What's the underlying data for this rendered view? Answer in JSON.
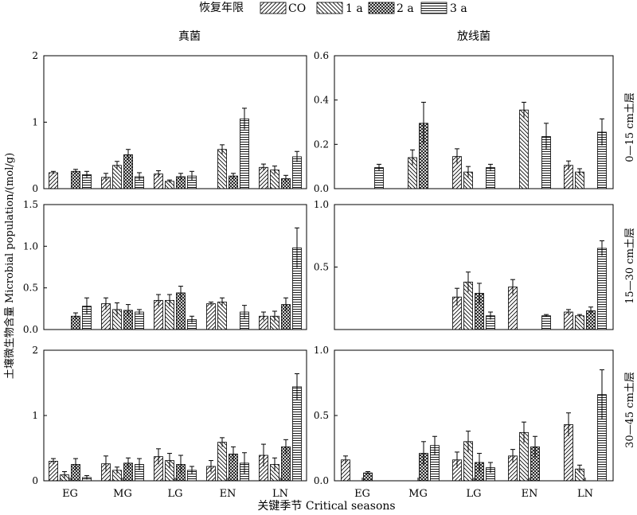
{
  "legend": {
    "title": "恢复年限",
    "items": [
      {
        "label": "CO",
        "pattern": "pat-fwd"
      },
      {
        "label": "1 a",
        "pattern": "pat-bwd"
      },
      {
        "label": "2 a",
        "pattern": "pat-cross"
      },
      {
        "label": "3 a",
        "pattern": "pat-horiz"
      }
    ]
  },
  "column_titles": [
    "真菌",
    "放线菌"
  ],
  "row_labels": [
    "0—15 cm土层",
    "15—30 cm土层",
    "30—45 cm土层"
  ],
  "ylabel": "土壤微生物含量 Microbial population/(mol/g)",
  "xlabel": "关键季节 Critical seasons",
  "chart_data": {
    "type": "bar",
    "categories": [
      "EG",
      "MG",
      "LG",
      "EN",
      "LN"
    ],
    "series_names": [
      "CO",
      "1 a",
      "2 a",
      "3 a"
    ],
    "panels": [
      {
        "column": "真菌",
        "depth": "0—15 cm土层",
        "ylim": [
          0,
          2
        ],
        "yticks": [
          0,
          1,
          2
        ],
        "values": [
          [
            0.24,
            null,
            0.26,
            0.21
          ],
          [
            0.17,
            0.35,
            0.51,
            0.18
          ],
          [
            0.22,
            0.11,
            0.18,
            0.19
          ],
          [
            null,
            0.59,
            0.19,
            1.05
          ],
          [
            0.32,
            0.28,
            0.15,
            0.48
          ]
        ],
        "errors": [
          [
            0.02,
            null,
            0.03,
            0.05
          ],
          [
            0.06,
            0.06,
            0.08,
            0.06
          ],
          [
            0.05,
            0.02,
            0.05,
            0.07
          ],
          [
            null,
            0.07,
            0.04,
            0.16
          ],
          [
            0.05,
            0.06,
            0.05,
            0.08
          ]
        ]
      },
      {
        "column": "放线菌",
        "depth": "0—15 cm土层",
        "ylim": [
          0,
          0.6
        ],
        "yticks": [
          0,
          0.2,
          0.4,
          0.6
        ],
        "values": [
          [
            null,
            null,
            null,
            0.095
          ],
          [
            null,
            0.14,
            0.295,
            null
          ],
          [
            0.145,
            0.075,
            null,
            0.095
          ],
          [
            null,
            0.355,
            null,
            0.235
          ],
          [
            0.105,
            0.075,
            null,
            0.255
          ]
        ],
        "errors": [
          [
            null,
            null,
            null,
            0.015
          ],
          [
            null,
            0.035,
            0.095,
            null
          ],
          [
            0.035,
            0.025,
            null,
            0.015
          ],
          [
            null,
            0.035,
            null,
            0.06
          ],
          [
            0.02,
            0.015,
            null,
            0.06
          ]
        ]
      },
      {
        "column": "真菌",
        "depth": "15—30 cm土层",
        "ylim": [
          0,
          1.5
        ],
        "yticks": [
          0,
          0.5,
          1.0,
          1.5
        ],
        "values": [
          [
            null,
            null,
            0.16,
            0.28
          ],
          [
            0.31,
            0.24,
            0.23,
            0.21
          ],
          [
            0.35,
            0.35,
            0.44,
            0.12
          ],
          [
            0.31,
            0.33,
            null,
            0.21
          ],
          [
            0.16,
            0.16,
            0.3,
            0.98
          ]
        ],
        "errors": [
          [
            null,
            null,
            0.04,
            0.1
          ],
          [
            0.07,
            0.08,
            0.07,
            0.03
          ],
          [
            0.07,
            0.07,
            0.08,
            0.04
          ],
          [
            0.02,
            0.05,
            null,
            0.08
          ],
          [
            0.05,
            0.06,
            0.08,
            0.24
          ]
        ]
      },
      {
        "column": "放线菌",
        "depth": "15—30 cm土层",
        "ylim": [
          0,
          1.0
        ],
        "yticks": [
          0.5,
          1.0
        ],
        "values": [
          [
            null,
            null,
            null,
            null
          ],
          [
            null,
            null,
            null,
            null
          ],
          [
            0.26,
            0.38,
            0.29,
            0.11
          ],
          [
            0.34,
            null,
            null,
            0.11
          ],
          [
            0.14,
            0.11,
            0.15,
            0.65
          ]
        ],
        "errors": [
          [
            null,
            null,
            null,
            null
          ],
          [
            null,
            null,
            null,
            null
          ],
          [
            0.07,
            0.08,
            0.08,
            0.03
          ],
          [
            0.06,
            null,
            null,
            0.01
          ],
          [
            0.02,
            0.01,
            0.03,
            0.06
          ]
        ]
      },
      {
        "column": "真菌",
        "depth": "30—45 cm土层",
        "ylim": [
          0,
          2
        ],
        "yticks": [
          0,
          1,
          2
        ],
        "values": [
          [
            0.3,
            0.09,
            0.25,
            0.05
          ],
          [
            0.26,
            0.16,
            0.27,
            0.25
          ],
          [
            0.37,
            0.31,
            0.25,
            0.16
          ],
          [
            0.22,
            0.59,
            0.41,
            0.27
          ],
          [
            0.39,
            0.25,
            0.52,
            1.44
          ]
        ],
        "errors": [
          [
            0.04,
            0.05,
            0.09,
            0.03
          ],
          [
            0.12,
            0.05,
            0.08,
            0.09
          ],
          [
            0.12,
            0.11,
            0.14,
            0.06
          ],
          [
            0.09,
            0.07,
            0.11,
            0.16
          ],
          [
            0.17,
            0.1,
            0.11,
            0.2
          ]
        ]
      },
      {
        "column": "放线菌",
        "depth": "30—45 cm土层",
        "ylim": [
          0,
          1.0
        ],
        "yticks": [
          0,
          0.5,
          1.0
        ],
        "values": [
          [
            0.16,
            null,
            0.06,
            null
          ],
          [
            null,
            null,
            0.21,
            0.27
          ],
          [
            0.16,
            0.3,
            0.14,
            0.1
          ],
          [
            0.19,
            0.37,
            0.26,
            null
          ],
          [
            0.43,
            0.09,
            null,
            0.66
          ]
        ],
        "errors": [
          [
            0.03,
            null,
            0.01,
            null
          ],
          [
            null,
            null,
            0.09,
            0.07
          ],
          [
            0.06,
            0.08,
            0.07,
            0.04
          ],
          [
            0.05,
            0.08,
            0.08,
            null
          ],
          [
            0.09,
            0.03,
            null,
            0.19
          ]
        ]
      }
    ]
  }
}
